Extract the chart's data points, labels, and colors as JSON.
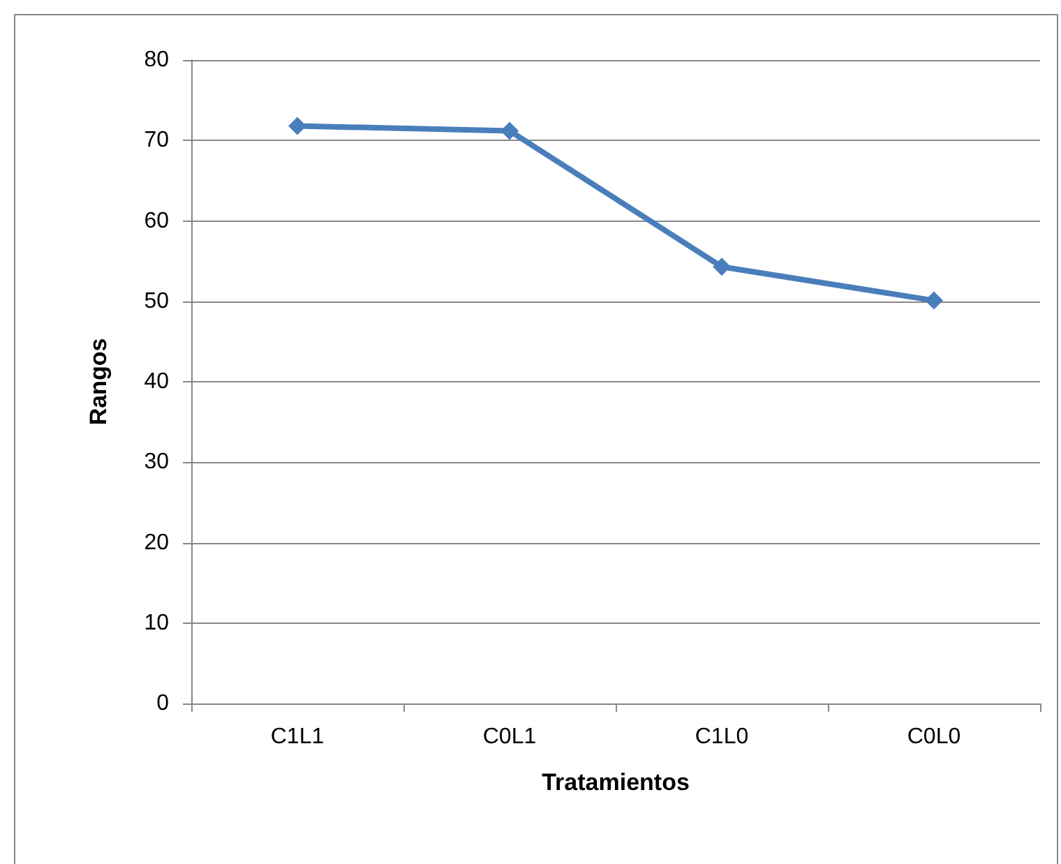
{
  "chart_data": {
    "type": "line",
    "xlabel": "Tratamientos",
    "ylabel": "Rangos",
    "categories": [
      "C1L1",
      "C0L1",
      "C1L0",
      "C0L0"
    ],
    "series": [
      {
        "color": "#4a7ebb",
        "values": [
          71.8,
          71.2,
          54.3,
          50.1
        ]
      }
    ],
    "ylim": [
      0,
      80
    ],
    "yticks": [
      0,
      10,
      20,
      30,
      40,
      50,
      60,
      70,
      80
    ],
    "grid": "y",
    "marker": "diamond",
    "line_style": "solid"
  }
}
